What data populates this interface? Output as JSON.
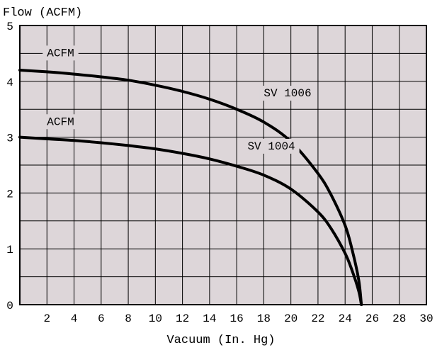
{
  "chart_data": {
    "type": "line",
    "title": "",
    "ylabel": "Flow (ACFM)",
    "xlabel": "Vacuum (In. Hg)",
    "xlim": [
      0,
      30
    ],
    "ylim": [
      0,
      5
    ],
    "x_ticks": [
      "2",
      "4",
      "6",
      "8",
      "10",
      "12",
      "14",
      "16",
      "18",
      "20",
      "22",
      "24",
      "26",
      "28",
      "30"
    ],
    "y_ticks": [
      "0",
      "1",
      "2",
      "3",
      "4",
      "5"
    ],
    "grid": true,
    "series": [
      {
        "name": "SV 1006",
        "x": [
          0,
          2,
          4,
          6,
          8,
          10,
          12,
          14,
          16,
          18,
          20,
          22,
          23,
          24,
          24.5,
          25,
          25.2
        ],
        "values": [
          4.2,
          4.17,
          4.13,
          4.08,
          4.02,
          3.93,
          3.82,
          3.68,
          3.5,
          3.27,
          2.92,
          2.35,
          1.95,
          1.42,
          1.0,
          0.45,
          0.0
        ]
      },
      {
        "name": "SV 1004",
        "x": [
          0,
          2,
          4,
          6,
          8,
          10,
          12,
          14,
          16,
          18,
          20,
          22,
          23,
          24,
          24.5,
          25,
          25.2
        ],
        "values": [
          3.0,
          2.97,
          2.94,
          2.9,
          2.85,
          2.79,
          2.71,
          2.61,
          2.48,
          2.32,
          2.07,
          1.66,
          1.35,
          0.92,
          0.62,
          0.25,
          0.0
        ]
      }
    ],
    "annotations": [
      {
        "text": "ACFM",
        "x": 2,
        "y": 4.45
      },
      {
        "text": "ACFM",
        "x": 2,
        "y": 3.22
      },
      {
        "text": "SV 1006",
        "x": 18,
        "y": 3.73
      },
      {
        "text": "SV 1004",
        "x": 16.8,
        "y": 2.78
      }
    ]
  }
}
